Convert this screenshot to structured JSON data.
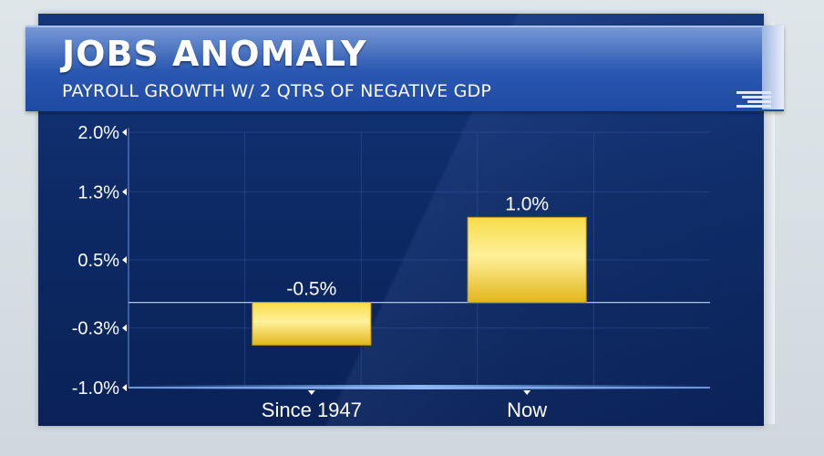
{
  "header": {
    "title": "JOBS ANOMALY",
    "subtitle": "PAYROLL GROWTH W/ 2 QTRS OF NEGATIVE GDP"
  },
  "colors": {
    "bar": "#f2cd2c",
    "panel": "#0d2a66",
    "banner": "#2d5bb5"
  },
  "chart_data": {
    "type": "bar",
    "title": "JOBS ANOMALY",
    "subtitle": "PAYROLL GROWTH W/ 2 QTRS OF NEGATIVE GDP",
    "categories": [
      "Since 1947",
      "Now"
    ],
    "values": [
      -0.5,
      1.0
    ],
    "data_labels": [
      "-0.5%",
      "1.0%"
    ],
    "yticks": [
      2.0,
      1.3,
      0.5,
      -0.3,
      -1.0
    ],
    "ytick_labels": [
      "2.0%",
      "1.3%",
      "0.5%",
      "-0.3%",
      "-1.0%"
    ],
    "ylim": [
      -1.0,
      2.0
    ],
    "xlabel": "",
    "ylabel": "",
    "grid": true,
    "legend": "none"
  }
}
